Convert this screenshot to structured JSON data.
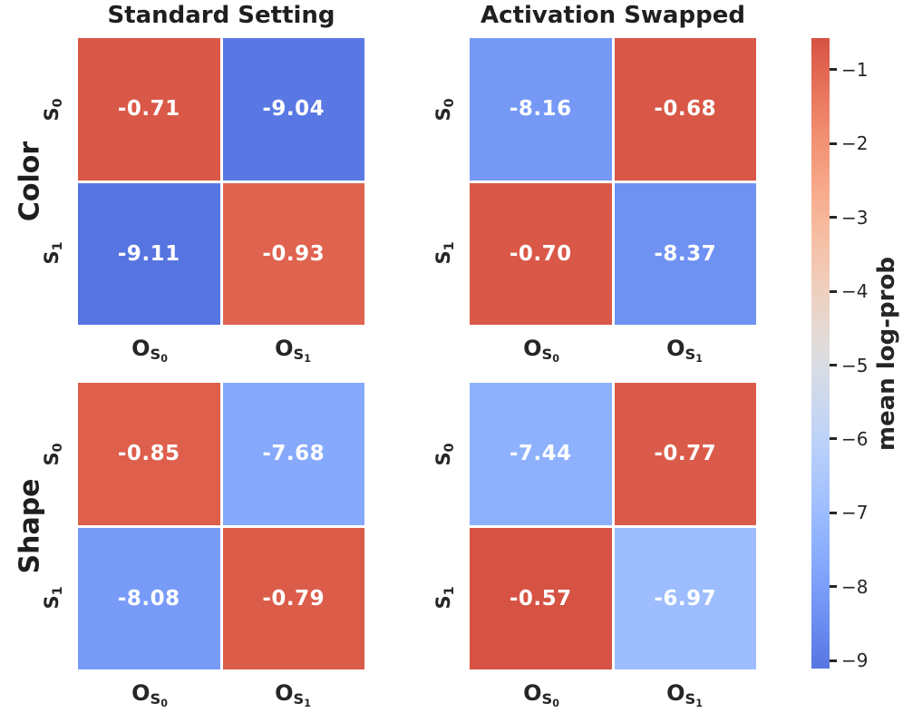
{
  "figure": {
    "background": "#ffffff",
    "text_color": "#262626",
    "annotation_color": "#ffffff"
  },
  "col_titles": {
    "col1": "Standard Setting",
    "col2": "Activation Swapped"
  },
  "row_labels": {
    "row1": "Color",
    "row2": "Shape"
  },
  "axis": {
    "y_ticks": [
      {
        "base": "S",
        "sub": "0"
      },
      {
        "base": "S",
        "sub": "1"
      }
    ],
    "x_ticks": [
      {
        "base": "O",
        "sub": "S",
        "subsub": "0"
      },
      {
        "base": "O",
        "sub": "S",
        "subsub": "1"
      }
    ]
  },
  "chart_data": [
    {
      "type": "heatmap",
      "row": "Color",
      "column": "Standard Setting",
      "x_labels": [
        "O_S0",
        "O_S1"
      ],
      "y_labels": [
        "S_0",
        "S_1"
      ],
      "values": [
        [
          -0.71,
          -9.04
        ],
        [
          -9.11,
          -0.93
        ]
      ],
      "annotations": [
        [
          "-0.71",
          "-9.04"
        ],
        [
          "-9.11",
          "-0.93"
        ]
      ]
    },
    {
      "type": "heatmap",
      "row": "Color",
      "column": "Activation Swapped",
      "x_labels": [
        "O_S0",
        "O_S1"
      ],
      "y_labels": [
        "S_0",
        "S_1"
      ],
      "values": [
        [
          -8.16,
          -0.68
        ],
        [
          -0.7,
          -8.37
        ]
      ],
      "annotations": [
        [
          "-8.16",
          "-0.68"
        ],
        [
          "-0.70",
          "-8.37"
        ]
      ]
    },
    {
      "type": "heatmap",
      "row": "Shape",
      "column": "Standard Setting",
      "x_labels": [
        "O_S0",
        "O_S1"
      ],
      "y_labels": [
        "S_0",
        "S_1"
      ],
      "values": [
        [
          -0.85,
          -7.68
        ],
        [
          -8.08,
          -0.79
        ]
      ],
      "annotations": [
        [
          "-0.85",
          "-7.68"
        ],
        [
          "-8.08",
          "-0.79"
        ]
      ]
    },
    {
      "type": "heatmap",
      "row": "Shape",
      "column": "Activation Swapped",
      "x_labels": [
        "O_S0",
        "O_S1"
      ],
      "y_labels": [
        "S_0",
        "S_1"
      ],
      "values": [
        [
          -7.44,
          -0.77
        ],
        [
          -0.57,
          -6.97
        ]
      ],
      "annotations": [
        [
          "-7.44",
          "-0.77"
        ],
        [
          "-0.57",
          "-6.97"
        ]
      ]
    }
  ],
  "colorbar": {
    "label": "mean log-prob",
    "colormap": "coolwarm",
    "range_top": -0.57,
    "range_bottom": -9.11,
    "scale_vmin": -10.1,
    "scale_vmax": 0.45,
    "ticks": [
      {
        "value": -1,
        "label": "−1"
      },
      {
        "value": -2,
        "label": "−2"
      },
      {
        "value": -3,
        "label": "−3"
      },
      {
        "value": -4,
        "label": "−4"
      },
      {
        "value": -5,
        "label": "−5"
      },
      {
        "value": -6,
        "label": "−6"
      },
      {
        "value": -7,
        "label": "−7"
      },
      {
        "value": -8,
        "label": "−8"
      },
      {
        "value": -9,
        "label": "−9"
      }
    ]
  }
}
